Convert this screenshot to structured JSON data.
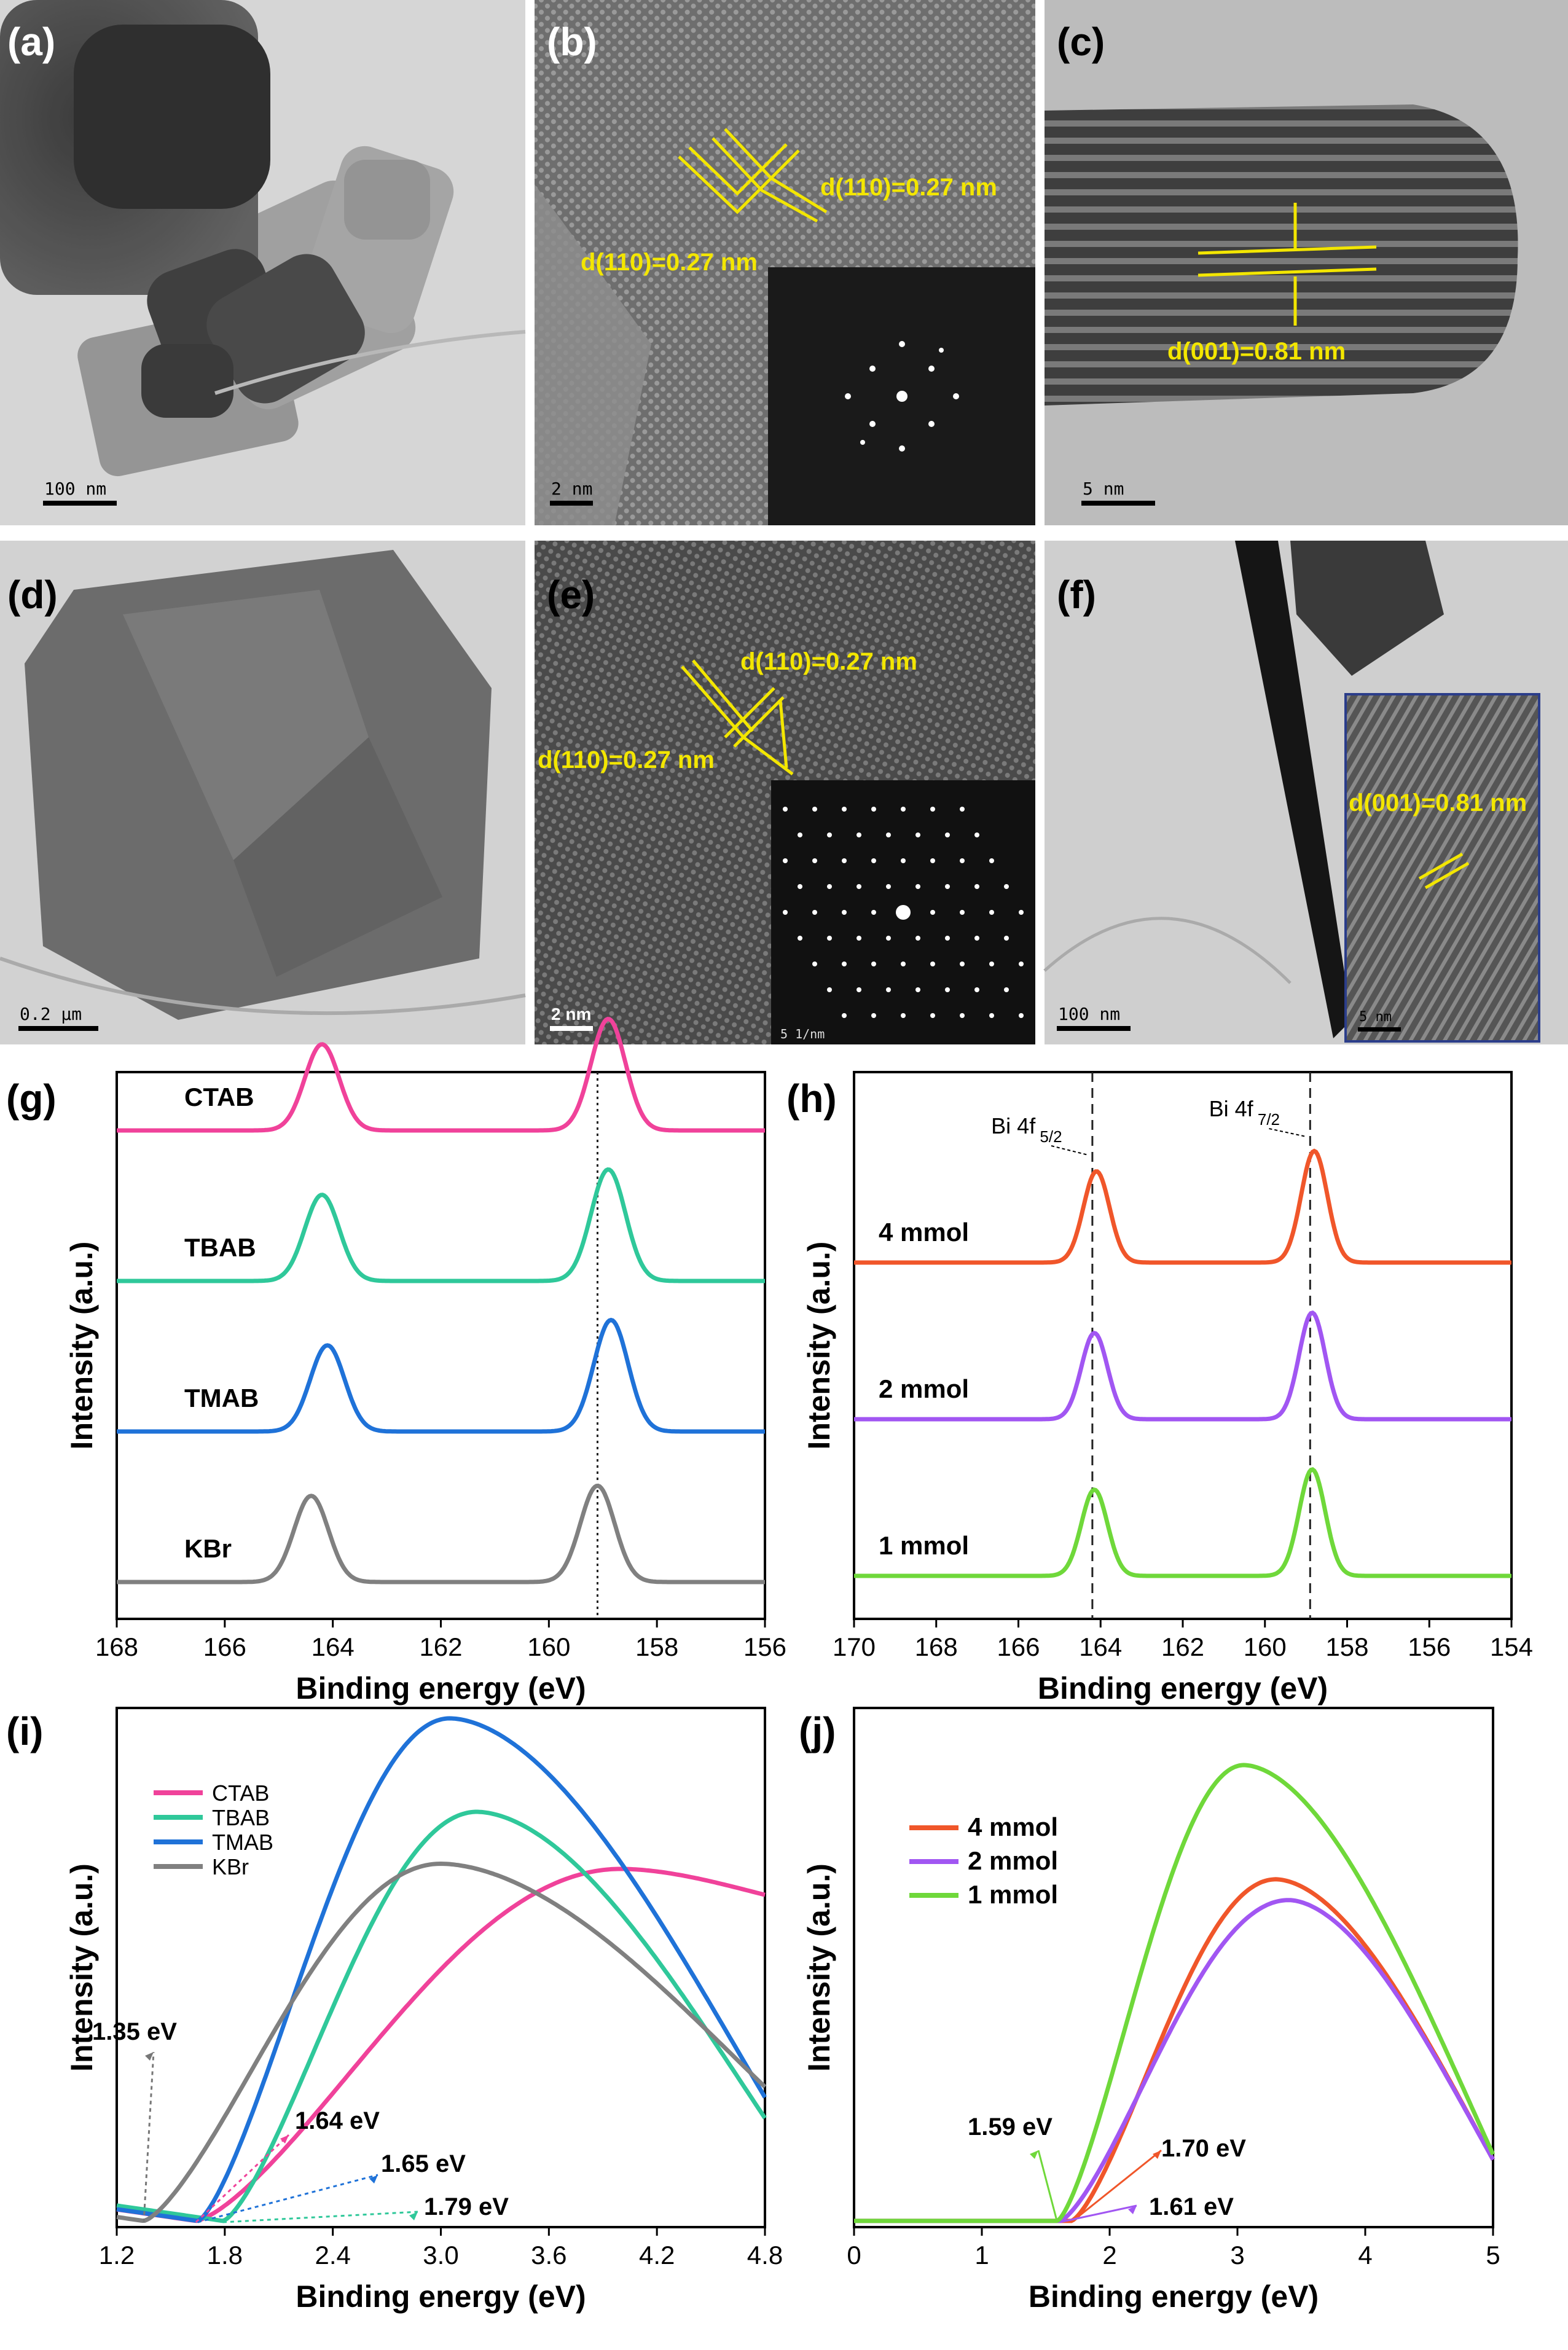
{
  "panels": {
    "a": {
      "label": "(a)",
      "scale": "100 nm"
    },
    "b": {
      "label": "(b)",
      "scale": "2 nm",
      "d1": "d(110)=0.27 nm",
      "d2": "d(110)=0.27 nm"
    },
    "c": {
      "label": "(c)",
      "scale": "5 nm",
      "d1": "d(001)=0.81 nm"
    },
    "d": {
      "label": "(d)",
      "scale": "0.2 µm"
    },
    "e": {
      "label": "(e)",
      "scale": "2 nm",
      "inset_scale": "5 1/nm",
      "d1": "d(110)=0.27 nm",
      "d2": "d(110)=0.27 nm"
    },
    "f": {
      "label": "(f)",
      "scale": "100 nm",
      "inset_scale": "5 nm",
      "d1": "d(001)=0.81 nm"
    },
    "g": {
      "label": "(g)"
    },
    "h": {
      "label": "(h)"
    },
    "i": {
      "label": "(i)"
    },
    "j": {
      "label": "(j)"
    }
  },
  "colors": {
    "CTAB": "#f0429a",
    "TBAB": "#2fc89a",
    "TMAB": "#1f72d8",
    "KBr": "#808080",
    "mmol4": "#f0562a",
    "mmol2": "#a156f2",
    "mmol1": "#6fd83a",
    "yellow": "#f3e600"
  },
  "chart_data": [
    {
      "id": "g",
      "type": "line",
      "title": "",
      "xlabel": "Binding energy (eV)",
      "ylabel": "Intensity (a.u.)",
      "xlim": [
        168,
        156
      ],
      "xticks": [
        168,
        166,
        164,
        162,
        160,
        158,
        156
      ],
      "reference_line": 159.1,
      "series": [
        {
          "name": "CTAB",
          "color": "#f0429a",
          "offset": 3,
          "peaks": [
            {
              "center": 164.2,
              "height": 0.85
            },
            {
              "center": 158.9,
              "height": 1.1
            }
          ]
        },
        {
          "name": "TBAB",
          "color": "#2fc89a",
          "offset": 2,
          "peaks": [
            {
              "center": 164.2,
              "height": 0.85
            },
            {
              "center": 158.9,
              "height": 1.1
            }
          ]
        },
        {
          "name": "TMAB",
          "color": "#1f72d8",
          "offset": 1,
          "peaks": [
            {
              "center": 164.1,
              "height": 0.85
            },
            {
              "center": 158.85,
              "height": 1.1
            }
          ]
        },
        {
          "name": "KBr",
          "color": "#808080",
          "offset": 0,
          "peaks": [
            {
              "center": 164.4,
              "height": 0.85
            },
            {
              "center": 159.1,
              "height": 0.95
            }
          ]
        }
      ]
    },
    {
      "id": "h",
      "type": "line",
      "title": "",
      "xlabel": "Binding energy (eV)",
      "ylabel": "Intensity (a.u.)",
      "xlim": [
        170,
        154
      ],
      "xticks": [
        170,
        168,
        166,
        164,
        162,
        160,
        158,
        156,
        154
      ],
      "reference_lines": [
        164.2,
        158.9
      ],
      "annotations": [
        {
          "text": "Bi 4f",
          "sub": "5/2"
        },
        {
          "text": "Bi 4f",
          "sub": "7/2"
        }
      ],
      "series": [
        {
          "name": "4 mmol",
          "color": "#f0562a",
          "offset": 2,
          "peaks": [
            {
              "center": 164.1,
              "height": 0.9
            },
            {
              "center": 158.8,
              "height": 1.1
            }
          ]
        },
        {
          "name": "2 mmol",
          "color": "#a156f2",
          "offset": 1,
          "peaks": [
            {
              "center": 164.15,
              "height": 0.85
            },
            {
              "center": 158.85,
              "height": 1.05
            }
          ]
        },
        {
          "name": "1 mmol",
          "color": "#6fd83a",
          "offset": 0,
          "peaks": [
            {
              "center": 164.15,
              "height": 0.85
            },
            {
              "center": 158.85,
              "height": 1.05
            }
          ]
        }
      ]
    },
    {
      "id": "i",
      "type": "line",
      "title": "",
      "xlabel": "Binding energy (eV)",
      "ylabel": "Intensity (a.u.)",
      "xlim": [
        1.2,
        4.8
      ],
      "xticks": [
        1.2,
        1.8,
        2.4,
        3.0,
        3.6,
        4.2,
        4.8
      ],
      "legend": "top-left",
      "annotations": [
        "1.35 eV",
        "1.64 eV",
        "1.65 eV",
        "1.79 eV"
      ],
      "series": [
        {
          "name": "CTAB",
          "color": "#f0429a",
          "onset": 1.64,
          "peak_x": 4.0,
          "peak_y": 0.69,
          "tail_y": 0.64
        },
        {
          "name": "TBAB",
          "color": "#2fc89a",
          "onset": 1.79,
          "peak_x": 3.2,
          "peak_y": 0.8,
          "tail_y": 0.21
        },
        {
          "name": "TMAB",
          "color": "#1f72d8",
          "onset": 1.65,
          "peak_x": 3.05,
          "peak_y": 0.98,
          "tail_y": 0.25
        },
        {
          "name": "KBr",
          "color": "#808080",
          "onset": 1.35,
          "peak_x": 3.0,
          "peak_y": 0.7,
          "tail_y": 0.27
        }
      ]
    },
    {
      "id": "j",
      "type": "line",
      "title": "",
      "xlabel": "Binding energy (eV)",
      "ylabel": "Intensity (a.u.)",
      "xlim": [
        0,
        5
      ],
      "xticks": [
        0,
        1,
        2,
        3,
        4,
        5
      ],
      "legend": "top-left",
      "annotations": [
        "1.59 eV",
        "1.70 eV",
        "1.61 eV"
      ],
      "series": [
        {
          "name": "4 mmol",
          "color": "#f0562a",
          "onset": 1.7,
          "peak_x": 3.3,
          "peak_y": 0.67,
          "tail_y": 0.13
        },
        {
          "name": "2 mmol",
          "color": "#a156f2",
          "onset": 1.61,
          "peak_x": 3.4,
          "peak_y": 0.63,
          "tail_y": 0.13
        },
        {
          "name": "1 mmol",
          "color": "#6fd83a",
          "onset": 1.59,
          "peak_x": 3.05,
          "peak_y": 0.89,
          "tail_y": 0.14
        }
      ]
    }
  ]
}
